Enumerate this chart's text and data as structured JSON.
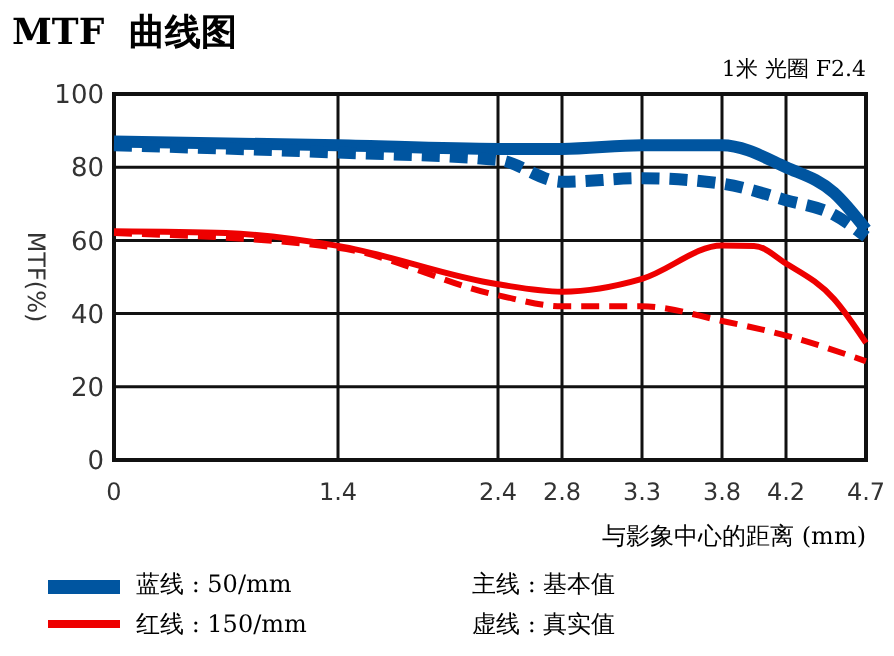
{
  "chart_data": {
    "type": "line",
    "title": "MTF  曲线图",
    "subtitle": "1米 光圈 F2.4",
    "xlabel": "与影象中心的距离 (mm)",
    "ylabel": "MTF(%)",
    "xlim": [
      0,
      4.7
    ],
    "xticks": [
      0,
      1.4,
      2.4,
      2.8,
      3.3,
      3.8,
      4.2,
      4.7
    ],
    "ylim": [
      0,
      100
    ],
    "yticks": [
      0,
      20,
      40,
      60,
      80,
      100
    ],
    "grid": true,
    "legend": "bottom left",
    "annotations": [
      "主线 : 基本值",
      "虚线 : 真实值"
    ],
    "series": [
      {
        "name": "蓝线 : 50/mm",
        "color": "#0055a0",
        "line_style": "solid",
        "x": [
          0,
          1.4,
          2.4,
          2.8,
          3.3,
          3.8,
          4.2,
          4.5,
          4.7
        ],
        "values": [
          87,
          86,
          85,
          85,
          86,
          86,
          80,
          73,
          63
        ]
      },
      {
        "color": "#0055a0",
        "line_style": "dashed",
        "x": [
          0,
          1.4,
          2.4,
          2.8,
          3.3,
          3.8,
          4.2,
          4.5,
          4.7
        ],
        "values": [
          86,
          84,
          82,
          76,
          77,
          75.5,
          71,
          67,
          61
        ]
      },
      {
        "name": "红线 : 150/mm",
        "color": "#ee0000",
        "line_style": "solid",
        "x": [
          0,
          0.7,
          1.4,
          2.4,
          2.8,
          3.3,
          3.8,
          4.0,
          4.2,
          4.5,
          4.7
        ],
        "values": [
          62.5,
          62,
          58.5,
          48,
          46,
          49.5,
          58.6,
          58.5,
          53.7,
          44,
          32
        ]
      },
      {
        "color": "#ee0000",
        "line_style": "dashed",
        "x": [
          0,
          1.4,
          2.4,
          2.8,
          3.3,
          3.8,
          4.2,
          4.7
        ],
        "values": [
          62,
          58,
          45,
          42,
          42,
          38,
          34,
          27
        ]
      }
    ]
  }
}
